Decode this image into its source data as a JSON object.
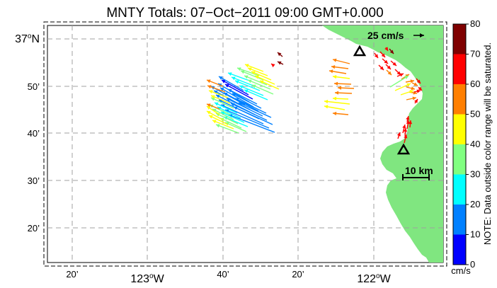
{
  "title": "MNTY Totals: 07−Oct−2011 09:00 GMT+0.000",
  "lat_labels": [
    {
      "text": "37",
      "deg": "o",
      "suffix": "N"
    },
    {
      "text": "50’"
    },
    {
      "text": "40’"
    },
    {
      "text": "30’"
    },
    {
      "text": "20’"
    }
  ],
  "lon_labels": [
    {
      "text": "20’",
      "major": false
    },
    {
      "text": "123",
      "deg": "o",
      "suffix": "W",
      "major": true
    },
    {
      "text": "40’",
      "major": false
    },
    {
      "text": "20’",
      "major": false
    },
    {
      "text": "122",
      "deg": "o",
      "suffix": "W",
      "major": true
    }
  ],
  "scale_arrow_label": "25 cm/s",
  "scale_bar_label": "10 km",
  "colorbar": {
    "ticks": [
      "80",
      "70",
      "60",
      "50",
      "40",
      "30",
      "20",
      "10",
      "0"
    ],
    "unit": "cm/s",
    "colors": [
      "#7f0000",
      "#ff0000",
      "#ff7f00",
      "#ffff00",
      "#80ff80",
      "#00ffff",
      "#0080ff",
      "#0000ff"
    ],
    "note": "NOTE: Data outside color range will be saturated."
  },
  "colors": {
    "land": "#80e680",
    "grid": "#9a9a9a",
    "site_marker": "#000000"
  },
  "site_markers": [
    "site-1",
    "site-2"
  ],
  "icons": [
    "triangle-icon",
    "arrow-icon"
  ]
}
